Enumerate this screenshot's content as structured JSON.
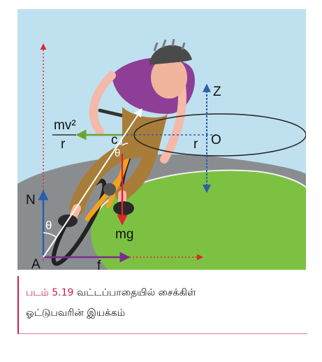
{
  "figure": {
    "labels": {
      "mv2": "mv²",
      "r_left": "r",
      "r_right": "r",
      "c": "c",
      "o": "O",
      "z": "Z",
      "n": "N",
      "theta_bottom": "θ",
      "theta_top": "θ",
      "mg": "mg",
      "a": "A",
      "f": "f"
    },
    "colors": {
      "sky": "#bfe0ef",
      "ground": "#7dc142",
      "road": "#8a8d90",
      "red": "#e0262b",
      "green": "#6aa42f",
      "blue": "#2b5fab",
      "purple": "#7b2b8e"
    }
  },
  "caption": {
    "figure_number": "படம் 5.19",
    "line1_text": "வட்டப்பாதையில் சைக்கிள்",
    "line2_text": "ஓட்டுபவரின் இயக்கம்"
  }
}
